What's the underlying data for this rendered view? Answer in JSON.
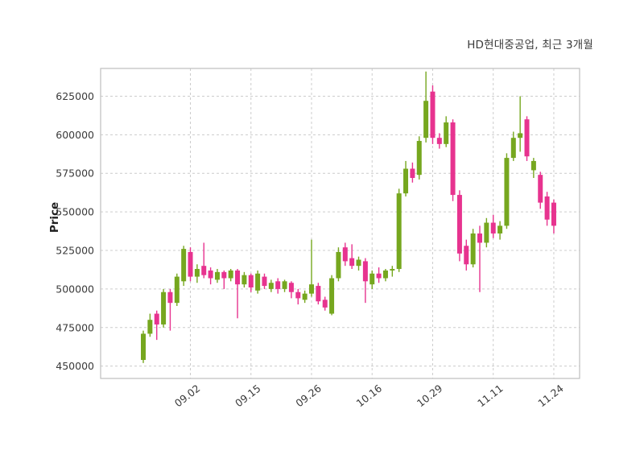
{
  "chart_data": {
    "type": "candlestick",
    "title": "HD현대중공업, 최근 3개월",
    "ylabel": "Price",
    "ylim": [
      442000,
      643000
    ],
    "y_ticks": [
      450000,
      475000,
      500000,
      525000,
      550000,
      575000,
      600000,
      625000
    ],
    "x_ticks": [
      {
        "index": 7,
        "label": "09.02"
      },
      {
        "index": 16,
        "label": "09.15"
      },
      {
        "index": 25,
        "label": "09.26"
      },
      {
        "index": 34,
        "label": "10.16"
      },
      {
        "index": 43,
        "label": "10.29"
      },
      {
        "index": 52,
        "label": "11.11"
      },
      {
        "index": 61,
        "label": "11.24"
      }
    ],
    "colors": {
      "up": "#76a71f",
      "down": "#e7338f",
      "grid": "#cccccc",
      "axis_border": "#bfbfbf",
      "text": "#3a3a3a"
    },
    "grid": "dashed",
    "legend": "none",
    "candles": [
      [
        454000,
        473000,
        452000,
        471000
      ],
      [
        471000,
        484000,
        469000,
        480000
      ],
      [
        484000,
        486000,
        467000,
        477000
      ],
      [
        477000,
        500000,
        475000,
        498000
      ],
      [
        498000,
        500000,
        473000,
        491000
      ],
      [
        491000,
        510000,
        489000,
        508000
      ],
      [
        505000,
        528000,
        502000,
        526000
      ],
      [
        524000,
        527000,
        505000,
        508000
      ],
      [
        508000,
        516000,
        504000,
        513000
      ],
      [
        515000,
        530000,
        507000,
        509000
      ],
      [
        512000,
        514000,
        503000,
        507000
      ],
      [
        506000,
        513000,
        504000,
        511000
      ],
      [
        511000,
        512000,
        500000,
        507000
      ],
      [
        507000,
        513000,
        505000,
        512000
      ],
      [
        512000,
        513000,
        481000,
        503000
      ],
      [
        503000,
        511000,
        501000,
        509000
      ],
      [
        509000,
        510000,
        498000,
        501000
      ],
      [
        499000,
        512000,
        497000,
        510000
      ],
      [
        508000,
        510000,
        500000,
        502000
      ],
      [
        500000,
        506000,
        498000,
        504000
      ],
      [
        505000,
        507000,
        497000,
        500000
      ],
      [
        500000,
        506000,
        498000,
        505000
      ],
      [
        504000,
        505000,
        494000,
        498000
      ],
      [
        498000,
        500000,
        490000,
        494000
      ],
      [
        493000,
        499000,
        491000,
        497000
      ],
      [
        497000,
        532000,
        495000,
        503000
      ],
      [
        502000,
        504000,
        490000,
        492000
      ],
      [
        493000,
        495000,
        486000,
        488000
      ],
      [
        484000,
        509000,
        483000,
        507000
      ],
      [
        507000,
        527000,
        505000,
        524000
      ],
      [
        527000,
        530000,
        515000,
        518000
      ],
      [
        520000,
        529000,
        513000,
        515000
      ],
      [
        515000,
        521000,
        512000,
        519000
      ],
      [
        518000,
        520000,
        491000,
        505000
      ],
      [
        503000,
        512000,
        500000,
        510000
      ],
      [
        510000,
        514000,
        504000,
        507000
      ],
      [
        507000,
        513000,
        505000,
        512000
      ],
      [
        512000,
        515000,
        508000,
        513000
      ],
      [
        513000,
        565000,
        511000,
        562000
      ],
      [
        562000,
        583000,
        560000,
        578000
      ],
      [
        578000,
        582000,
        569000,
        572000
      ],
      [
        574000,
        599000,
        571000,
        596000
      ],
      [
        598000,
        641000,
        595000,
        622000
      ],
      [
        628000,
        632000,
        594000,
        598000
      ],
      [
        598000,
        601000,
        591000,
        594000
      ],
      [
        594000,
        612000,
        592000,
        608000
      ],
      [
        608000,
        610000,
        557000,
        561000
      ],
      [
        561000,
        564000,
        518000,
        523000
      ],
      [
        528000,
        532000,
        512000,
        516000
      ],
      [
        516000,
        539000,
        514000,
        536000
      ],
      [
        536000,
        541000,
        498000,
        530000
      ],
      [
        530000,
        546000,
        527000,
        543000
      ],
      [
        543000,
        548000,
        533000,
        536000
      ],
      [
        536000,
        544000,
        532000,
        541000
      ],
      [
        541000,
        588000,
        539000,
        585000
      ],
      [
        585000,
        602000,
        583000,
        598000
      ],
      [
        598000,
        625000,
        589000,
        601000
      ],
      [
        610000,
        612000,
        583000,
        586000
      ],
      [
        577000,
        585000,
        572000,
        583000
      ],
      [
        574000,
        576000,
        552000,
        556000
      ],
      [
        560000,
        563000,
        541000,
        545000
      ],
      [
        556000,
        558000,
        536000,
        541000
      ]
    ]
  }
}
